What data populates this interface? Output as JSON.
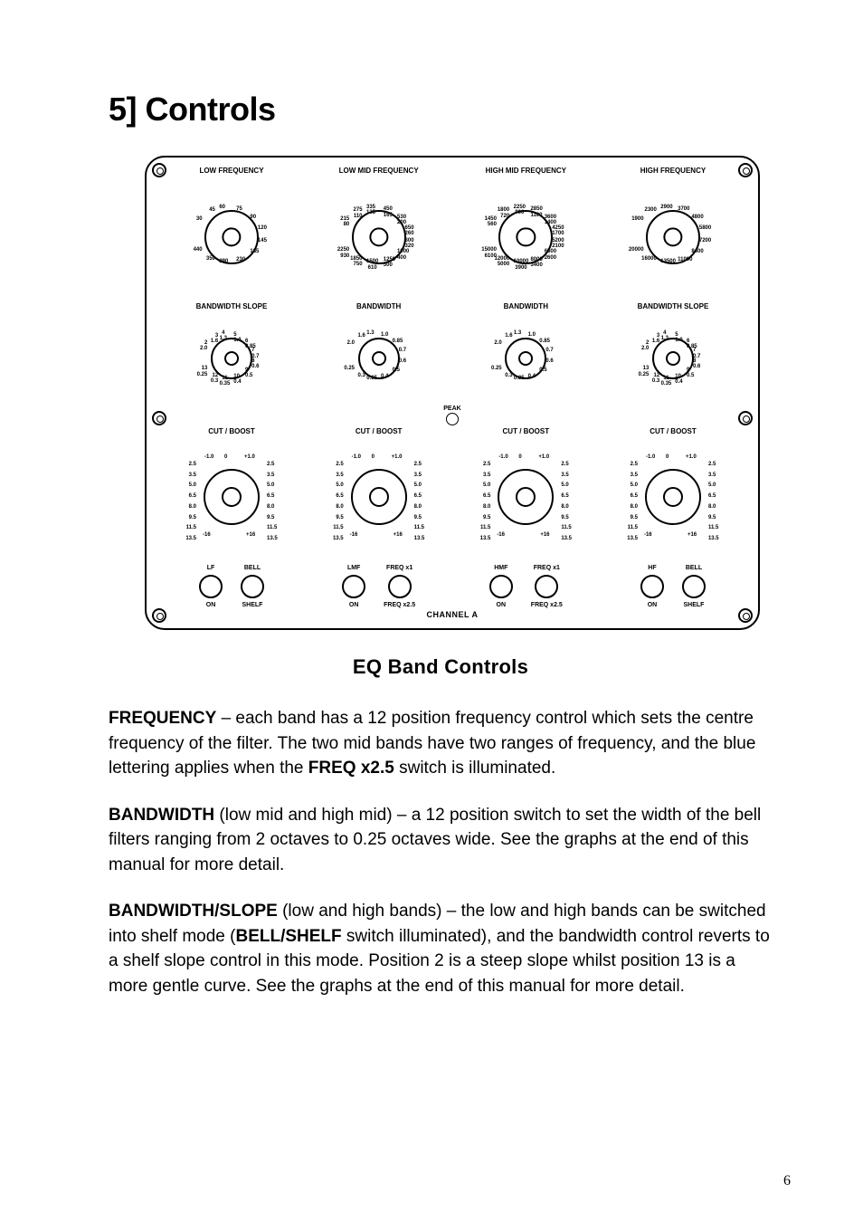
{
  "heading": "5] Controls",
  "subheading": "EQ Band Controls",
  "page_number": "6",
  "paras": [
    {
      "b": "FREQUENCY",
      "rest": " – each band has a 12 position frequency control which sets the centre frequency of the filter. The two mid bands have two ranges of frequency, and the blue lettering applies when the ",
      "b2": "FREQ x2.5",
      "rest2": " switch is illuminated."
    },
    {
      "b": "BANDWIDTH",
      "rest": " (low mid and high mid) – a 12 position switch to set the width of the bell filters ranging from 2 octaves to 0.25 octaves wide.  See the graphs at the end of this manual for more detail."
    },
    {
      "b": "BANDWIDTH/SLOPE",
      "rest": " (low and high bands) – the low and high bands can be switched into shelf mode (",
      "b2": "BELL/SHELF",
      "rest2": " switch illuminated), and the bandwidth control reverts to a shelf slope control in this mode.  Position 2 is a steep slope whilst position 13 is a more gentle curve.  See the graphs at the end of this manual for more detail."
    }
  ],
  "panel": {
    "channel": "CHANNEL A",
    "peak_label": "PEAK",
    "bands": [
      {
        "freq_title": "LOW FREQUENCY",
        "freq_ticks": [
          "30",
          "45",
          "60",
          "75",
          "90",
          "120",
          "145",
          "185",
          "230",
          "290",
          "350",
          "440"
        ],
        "freq_ticks2": null,
        "bw_title": "BANDWIDTH  SLOPE",
        "bw_ticks": [
          "2",
          "3",
          "4",
          "5",
          "6",
          "7",
          "8",
          "9",
          "10",
          "11",
          "12",
          "13"
        ],
        "bw_ticks2": [
          "2.0",
          "1.6",
          "1.3",
          "1.0",
          "0.85",
          "0.7",
          "0.6",
          "0.5",
          "0.4",
          "0.35",
          "0.3",
          "0.25"
        ],
        "cb_title": "CUT / BOOST",
        "cb_ticks": [
          "-16",
          "13.5",
          "11.5",
          "9.5",
          "8.0",
          "6.5",
          "5.0",
          "3.5",
          "2.5",
          "-1.0",
          "0",
          "+1.0",
          "2.5",
          "3.5",
          "5.0",
          "6.5",
          "8.0",
          "9.5",
          "11.5",
          "13.5",
          "+16"
        ],
        "sw_top": [
          "LF",
          "BELL"
        ],
        "sw_bot": [
          "ON",
          "SHELF"
        ]
      },
      {
        "freq_title": "LOW MID FREQUENCY",
        "freq_ticks": [
          "215",
          "275",
          "335",
          "450",
          "530",
          "650",
          "800",
          "1000",
          "1250",
          "1500",
          "1850",
          "2250"
        ],
        "freq_ticks2": [
          "80",
          "110",
          "135",
          "165",
          "200",
          "260",
          "320",
          "400",
          "500",
          "610",
          "750",
          "930"
        ],
        "bw_title": "BANDWIDTH",
        "bw_ticks": [
          "2.0",
          "1.6",
          "1.3",
          "1.0",
          "0.85",
          "0.7",
          "0.6",
          "0.5",
          "0.4",
          "0.35",
          "0.3",
          "0.25"
        ],
        "bw_ticks2": null,
        "cb_title": "CUT / BOOST",
        "cb_ticks": [
          "-16",
          "13.5",
          "11.5",
          "9.5",
          "8.0",
          "6.5",
          "5.0",
          "3.5",
          "2.5",
          "-1.0",
          "0",
          "+1.0",
          "2.5",
          "3.5",
          "5.0",
          "6.5",
          "8.0",
          "9.5",
          "11.5",
          "13.5",
          "+16"
        ],
        "sw_top": [
          "LMF",
          "FREQ x1"
        ],
        "sw_bot": [
          "ON",
          "FREQ x2.5"
        ]
      },
      {
        "freq_title": "HIGH MID FREQUENCY",
        "freq_ticks": [
          "1450",
          "1800",
          "2250",
          "2850",
          "3600",
          "4250",
          "5200",
          "6500",
          "8000",
          "10000",
          "12000",
          "15000"
        ],
        "freq_ticks2": [
          "560",
          "720",
          "900",
          "1100",
          "1400",
          "1700",
          "2100",
          "2600",
          "3400",
          "3900",
          "5000",
          "6100"
        ],
        "bw_title": "BANDWIDTH",
        "bw_ticks": [
          "2.0",
          "1.6",
          "1.3",
          "1.0",
          "0.85",
          "0.7",
          "0.6",
          "0.5",
          "0.4",
          "0.35",
          "0.3",
          "0.25"
        ],
        "bw_ticks2": null,
        "cb_title": "CUT / BOOST",
        "cb_ticks": [
          "-16",
          "13.5",
          "11.5",
          "9.5",
          "8.0",
          "6.5",
          "5.0",
          "3.5",
          "2.5",
          "-1.0",
          "0",
          "+1.0",
          "2.5",
          "3.5",
          "5.0",
          "6.5",
          "8.0",
          "9.5",
          "11.5",
          "13.5",
          "+16"
        ],
        "sw_top": [
          "HMF",
          "FREQ x1"
        ],
        "sw_bot": [
          "ON",
          "FREQ x2.5"
        ]
      },
      {
        "freq_title": "HIGH FREQUENCY",
        "freq_ticks": [
          "1900",
          "2300",
          "2900",
          "3700",
          "4800",
          "5800",
          "7200",
          "8400",
          "11000",
          "13500",
          "16000",
          "20000"
        ],
        "freq_ticks2": null,
        "bw_title": "BANDWIDTH  SLOPE",
        "bw_ticks": [
          "2",
          "3",
          "4",
          "5",
          "6",
          "7",
          "8",
          "9",
          "10",
          "11",
          "12",
          "13"
        ],
        "bw_ticks2": [
          "2.0",
          "1.6",
          "1.3",
          "1.0",
          "0.85",
          "0.7",
          "0.6",
          "0.5",
          "0.4",
          "0.35",
          "0.3",
          "0.25"
        ],
        "cb_title": "CUT / BOOST",
        "cb_ticks": [
          "-16",
          "13.5",
          "11.5",
          "9.5",
          "8.0",
          "6.5",
          "5.0",
          "3.5",
          "2.5",
          "-1.0",
          "0",
          "+1.0",
          "2.5",
          "3.5",
          "5.0",
          "6.5",
          "8.0",
          "9.5",
          "11.5",
          "13.5",
          "+16"
        ],
        "sw_top": [
          "HF",
          "BELL"
        ],
        "sw_bot": [
          "ON",
          "SHELF"
        ]
      }
    ],
    "knob_style": {
      "freq": {
        "ring_w": 160,
        "ring_h": 140,
        "core_d": 60,
        "start_deg": 215,
        "end_deg": 505,
        "layout": "around"
      },
      "bw": {
        "ring_w": 160,
        "ring_h": 108,
        "core_d": 46,
        "start_deg": 215,
        "end_deg": 505,
        "layout": "around"
      },
      "cutboost": {
        "ring_w": 160,
        "ring_h": 138,
        "core_d": 62,
        "start_deg": 124,
        "end_deg": 416,
        "layout": "sides"
      }
    }
  }
}
